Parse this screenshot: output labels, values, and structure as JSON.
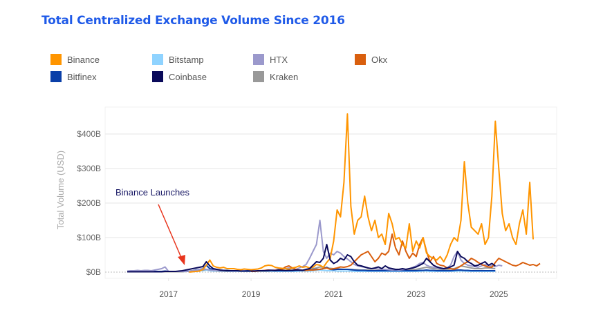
{
  "title": "Total Centralized Exchange Volume Since 2016",
  "chart_data": {
    "type": "line",
    "title": "Total Centralized Exchange Volume Since 2016",
    "xlabel": "",
    "ylabel": "Total Volume (USD)",
    "ylim": [
      0,
      480
    ],
    "xlim": [
      2016.0,
      2026.0
    ],
    "y_unit": "Billions USD",
    "y_ticks": [
      0,
      100,
      200,
      300,
      400
    ],
    "y_tick_labels": [
      "$0B",
      "$100B",
      "$200B",
      "$300B",
      "$400B"
    ],
    "x_ticks": [
      2017,
      2019,
      2021,
      2023,
      2025
    ],
    "x_tick_labels": [
      "2017",
      "2019",
      "2021",
      "2023",
      "2025"
    ],
    "grid": true,
    "legend_position": "top",
    "x_start": 2016.0,
    "x_step_years": 0.08333,
    "annotation": {
      "text": "Binance Launches",
      "x": 2017.5,
      "y": 0,
      "color": "#e8351d"
    },
    "series": [
      {
        "name": "Binance",
        "color": "#ff9500",
        "start_index": 18,
        "values": [
          0,
          1,
          2,
          3,
          8,
          20,
          35,
          18,
          14,
          12,
          14,
          10,
          10,
          10,
          8,
          7,
          9,
          8,
          7,
          8,
          9,
          12,
          18,
          20,
          19,
          14,
          12,
          11,
          10,
          8,
          12,
          14,
          18,
          14,
          16,
          12,
          14,
          22,
          20,
          14,
          28,
          40,
          90,
          180,
          160,
          260,
          458,
          190,
          110,
          150,
          160,
          220,
          160,
          120,
          150,
          100,
          110,
          80,
          170,
          140,
          95,
          100,
          80,
          70,
          140,
          60,
          90,
          70,
          100,
          55,
          45,
          40,
          35,
          45,
          30,
          50,
          80,
          100,
          90,
          150,
          320,
          200,
          130,
          120,
          110,
          140,
          80,
          100,
          220,
          437,
          300,
          170,
          120,
          140,
          100,
          80,
          140,
          180,
          110,
          260,
          95
        ]
      },
      {
        "name": "Okx",
        "color": "#d95f0e",
        "start_index": 36,
        "values": [
          2,
          2,
          3,
          4,
          5,
          6,
          5,
          5,
          6,
          8,
          15,
          18,
          12,
          8,
          6,
          5,
          5,
          6,
          6,
          7,
          8,
          10,
          12,
          8,
          10,
          12,
          15,
          14,
          16,
          20,
          30,
          40,
          50,
          55,
          60,
          45,
          30,
          40,
          55,
          50,
          60,
          110,
          70,
          50,
          90,
          60,
          40,
          55,
          45,
          80,
          100,
          60,
          30,
          45,
          25,
          20,
          18,
          12,
          10,
          8,
          12,
          18,
          25,
          30,
          40,
          35,
          28,
          22,
          18,
          15,
          14,
          28,
          40,
          35,
          30,
          25,
          20,
          18,
          22,
          28,
          24,
          20,
          22,
          18,
          25
        ]
      },
      {
        "name": "HTX",
        "color": "#9b99cc",
        "values": [
          3,
          4,
          4,
          5,
          4,
          5,
          5,
          4,
          6,
          8,
          10,
          15,
          2,
          2,
          2,
          2,
          2,
          2,
          3,
          4,
          5,
          8,
          10,
          8,
          6,
          5,
          5,
          4,
          4,
          4,
          3,
          3,
          3,
          4,
          4,
          3,
          3,
          4,
          4,
          4,
          5,
          6,
          6,
          7,
          9,
          8,
          10,
          12,
          10,
          8,
          12,
          16,
          22,
          40,
          60,
          80,
          150,
          60,
          40,
          55,
          50,
          60,
          55,
          45,
          38,
          30,
          22,
          18,
          16,
          14,
          12,
          10,
          10,
          9,
          8,
          8,
          7,
          6,
          7,
          6,
          7,
          8,
          10,
          14,
          18,
          25,
          28,
          20,
          16,
          14,
          12,
          10,
          10,
          12,
          20,
          45,
          60,
          35,
          25,
          20,
          18,
          16,
          14,
          18,
          22,
          20,
          18,
          16,
          20,
          18
        ]
      },
      {
        "name": "Coinbase",
        "color": "#0a0a5a",
        "values": [
          1,
          1,
          1,
          1,
          1,
          1,
          1,
          1,
          1,
          1,
          1,
          2,
          2,
          2,
          2,
          3,
          4,
          6,
          8,
          10,
          12,
          14,
          16,
          30,
          18,
          10,
          8,
          6,
          5,
          4,
          4,
          4,
          4,
          3,
          3,
          3,
          3,
          3,
          4,
          4,
          4,
          5,
          5,
          4,
          6,
          5,
          4,
          5,
          5,
          6,
          6,
          5,
          8,
          10,
          20,
          30,
          28,
          40,
          80,
          35,
          25,
          30,
          40,
          35,
          50,
          45,
          30,
          20,
          18,
          15,
          12,
          10,
          12,
          15,
          10,
          18,
          12,
          10,
          8,
          8,
          10,
          8,
          10,
          12,
          15,
          20,
          25,
          40,
          30,
          20,
          15,
          12,
          10,
          12,
          15,
          20,
          60,
          45,
          40,
          30,
          25,
          18,
          20,
          25,
          30,
          20,
          25,
          18
        ]
      },
      {
        "name": "Kraken",
        "color": "#999999",
        "values": [
          1,
          1,
          1,
          1,
          1,
          1,
          1,
          1,
          1,
          1,
          1,
          1,
          1,
          1,
          1,
          1,
          1,
          2,
          2,
          3,
          4,
          5,
          6,
          8,
          6,
          5,
          4,
          3,
          3,
          3,
          3,
          3,
          3,
          3,
          3,
          3,
          3,
          3,
          3,
          3,
          3,
          3,
          4,
          4,
          5,
          5,
          5,
          5,
          5,
          5,
          6,
          6,
          7,
          8,
          10,
          12,
          15,
          14,
          12,
          11,
          10,
          10,
          9,
          8,
          8,
          8,
          7,
          7,
          6,
          6,
          6,
          5,
          5,
          5,
          5,
          5,
          5,
          5,
          5,
          5,
          5,
          6,
          6,
          7,
          8,
          10,
          12,
          14,
          12,
          10,
          9,
          8,
          8,
          8,
          9,
          10,
          14,
          18,
          16,
          14,
          12,
          10,
          10,
          10,
          12,
          12,
          11,
          10
        ]
      },
      {
        "name": "Bitfinex",
        "color": "#0a3fa8",
        "values": [
          2,
          2,
          2,
          2,
          2,
          2,
          2,
          2,
          2,
          2,
          2,
          3,
          2,
          2,
          2,
          2,
          2,
          2,
          3,
          4,
          6,
          8,
          10,
          20,
          10,
          8,
          6,
          5,
          5,
          5,
          4,
          4,
          4,
          4,
          4,
          4,
          4,
          4,
          4,
          4,
          4,
          4,
          5,
          4,
          4,
          4,
          4,
          4,
          4,
          5,
          5,
          5,
          6,
          6,
          7,
          8,
          8,
          10,
          14,
          8,
          7,
          8,
          8,
          8,
          8,
          7,
          6,
          5,
          5,
          5,
          4,
          4,
          4,
          4,
          4,
          4,
          4,
          4,
          4,
          4,
          4,
          4,
          4,
          4,
          4,
          5,
          5,
          6,
          5,
          5,
          4,
          4,
          4,
          4,
          4,
          5,
          6,
          6,
          5,
          5,
          4,
          4,
          4,
          4,
          4,
          4,
          4,
          4
        ]
      },
      {
        "name": "Bitstamp",
        "color": "#8fd3ff",
        "values": [
          1,
          1,
          1,
          1,
          1,
          1,
          1,
          1,
          1,
          1,
          1,
          1,
          1,
          1,
          1,
          1,
          1,
          2,
          2,
          3,
          3,
          4,
          4,
          6,
          4,
          3,
          3,
          2,
          2,
          2,
          2,
          2,
          2,
          2,
          2,
          2,
          2,
          2,
          2,
          2,
          2,
          2,
          2,
          2,
          2,
          2,
          2,
          2,
          2,
          2,
          3,
          3,
          3,
          3,
          4,
          5,
          6,
          5,
          4,
          4,
          4,
          3,
          3,
          3,
          3,
          3,
          2,
          2,
          2,
          2,
          2,
          2,
          2,
          2,
          2,
          2,
          2,
          2,
          2,
          2,
          2,
          2,
          2,
          2,
          2,
          2,
          3,
          3,
          2,
          2,
          2,
          2,
          2,
          2,
          2,
          2,
          3,
          3,
          3,
          2,
          2,
          2,
          2,
          2,
          2,
          2,
          2,
          2
        ]
      }
    ]
  }
}
